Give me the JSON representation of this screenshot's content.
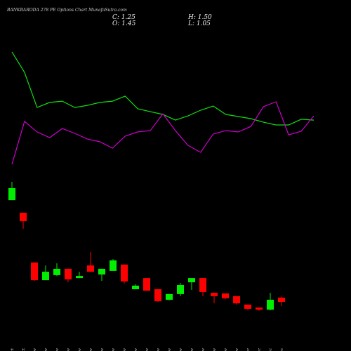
{
  "chart_data": {
    "type": "candlestick",
    "title": "BANKBARODA 278  PE Options Chart MunafaSutra.com",
    "ohlc_labels": [
      "C: 1.25",
      "H: 1.50",
      "O: 1.45",
      "L: 1.05"
    ],
    "categories": [
      "30 Oct",
      "31 Oct",
      "03 Nov",
      "04 Nov",
      "06 Nov",
      "07 Nov",
      "10 Nov",
      "11 Nov",
      "12 Nov",
      "13 Nov",
      "14 Nov",
      "17 Nov",
      "18 Nov",
      "19 Nov",
      "20 Nov",
      "21 Nov",
      "24 Nov",
      "25 Nov",
      "26 Nov",
      "27 Nov",
      "28 Nov",
      "01 Dec",
      "02 Dec",
      "03 Dec",
      "04 Dec"
    ],
    "open": [
      6.08,
      5.48,
      3.12,
      2.28,
      2.52,
      2.82,
      2.38,
      2.98,
      2.55,
      2.72,
      3.02,
      1.85,
      2.38,
      1.85,
      1.35,
      1.62,
      2.18,
      2.38,
      1.68,
      1.65,
      1.52,
      1.12,
      0.98,
      0.88,
      1.45
    ],
    "high": [
      6.95,
      5.48,
      3.12,
      2.98,
      3.08,
      2.82,
      2.68,
      3.62,
      2.82,
      3.28,
      3.02,
      2.08,
      2.38,
      1.85,
      1.62,
      2.15,
      2.38,
      2.38,
      1.68,
      1.65,
      1.52,
      1.12,
      0.98,
      1.68,
      1.5
    ],
    "low": [
      6.08,
      4.72,
      2.25,
      2.28,
      2.48,
      2.18,
      2.38,
      2.68,
      2.25,
      2.72,
      2.12,
      1.85,
      1.78,
      1.25,
      1.32,
      1.52,
      1.82,
      1.52,
      1.18,
      1.38,
      1.12,
      0.85,
      0.82,
      0.85,
      1.05
    ],
    "close": [
      6.65,
      5.08,
      2.28,
      2.68,
      2.82,
      2.32,
      2.48,
      2.68,
      2.82,
      3.22,
      2.22,
      2.02,
      1.78,
      1.28,
      1.62,
      2.05,
      2.38,
      1.72,
      1.52,
      1.42,
      1.18,
      0.92,
      0.88,
      1.35,
      1.25
    ],
    "up_color": "#00ee00",
    "down_color": "#ff0000",
    "series": [
      {
        "color": "#11dd11",
        "values": [
          13.12,
          12.15,
          10.48,
          10.72,
          10.78,
          10.48,
          10.58,
          10.72,
          10.78,
          11.02,
          10.42,
          10.28,
          10.15,
          9.88,
          10.08,
          10.35,
          10.55,
          10.15,
          10.05,
          9.95,
          9.78,
          9.65,
          9.65,
          9.92,
          9.88
        ]
      },
      {
        "color": "#cc00cc",
        "values": [
          7.78,
          9.82,
          9.32,
          9.05,
          9.48,
          9.25,
          8.98,
          8.85,
          8.55,
          9.12,
          9.32,
          9.38,
          10.18,
          9.38,
          8.68,
          8.35,
          9.22,
          9.38,
          9.32,
          9.58,
          10.52,
          10.75,
          9.18,
          9.35,
          10.08
        ]
      }
    ],
    "ylim": [
      0.5,
      15.5
    ]
  }
}
